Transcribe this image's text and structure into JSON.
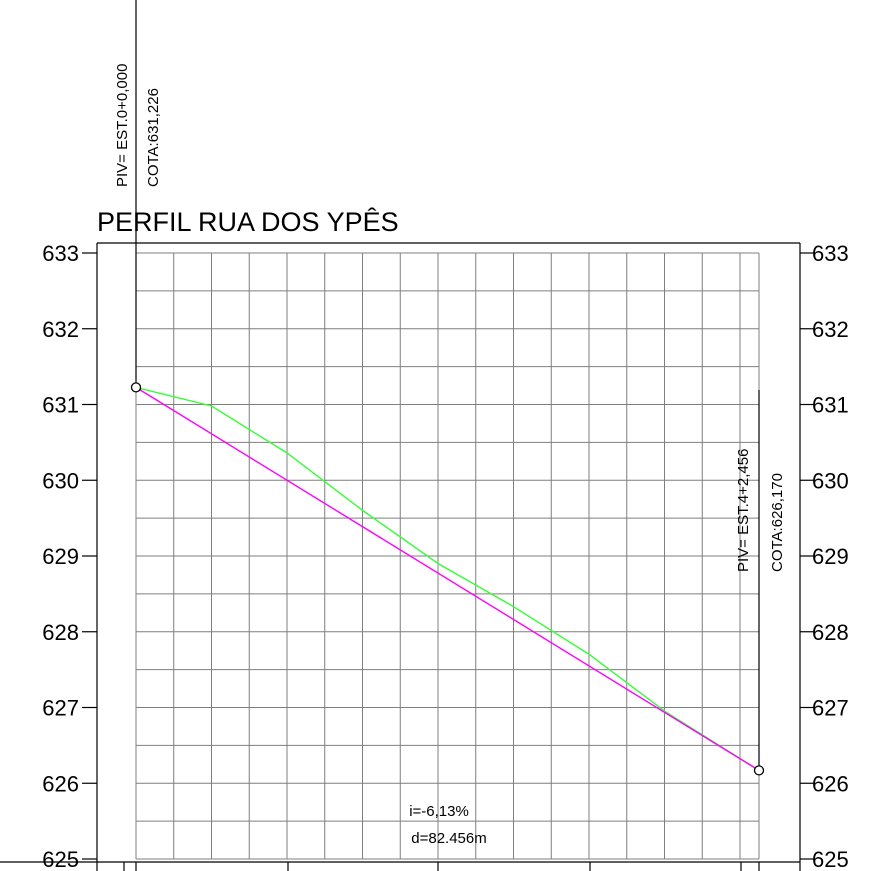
{
  "title": "PERFIL RUA DOS YPÊS",
  "piv_start": {
    "station": "PIV= EST.0+0,000",
    "elevation": "COTA:631,226"
  },
  "piv_end": {
    "station": "PIV= EST.4+2,456",
    "elevation": "COTA:626,170"
  },
  "slope_label": "i=-6,13%",
  "distance_label": "d=82.456m",
  "chart_data": {
    "type": "line",
    "title": "PERFIL RUA DOS YPÊS",
    "xlabel": "",
    "ylabel": "",
    "ylim": [
      625,
      633
    ],
    "xlim": [
      0,
      82.456
    ],
    "y_ticks": [
      "625",
      "626",
      "627",
      "628",
      "629",
      "630",
      "631",
      "632",
      "633"
    ],
    "grid": true,
    "series": [
      {
        "color": "#33ff33",
        "x": [
          0,
          10,
          20,
          30,
          40,
          50,
          60,
          70,
          82.456
        ],
        "y": [
          631.226,
          630.98,
          630.36,
          629.6,
          628.9,
          628.33,
          627.7,
          626.95,
          626.17
        ]
      },
      {
        "color": "#ff00ff",
        "x": [
          0,
          82.456
        ],
        "y": [
          631.226,
          626.17
        ]
      }
    ],
    "piv": [
      {
        "x": 0,
        "y": 631.226
      },
      {
        "x": 82.456,
        "y": 626.17
      }
    ]
  }
}
